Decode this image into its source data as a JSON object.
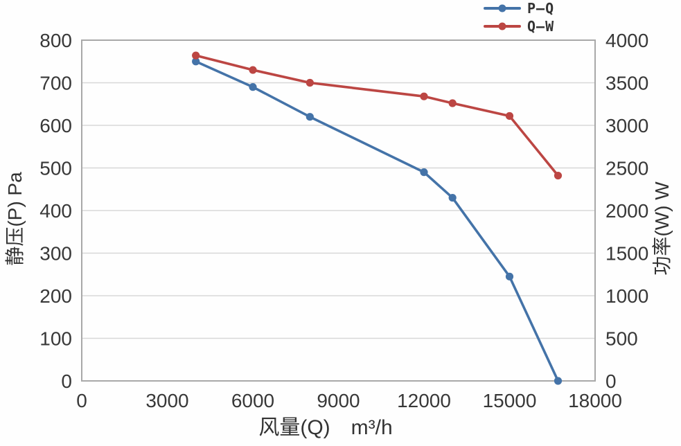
{
  "chart_data": {
    "type": "line",
    "title": "",
    "grid": "horizontal",
    "legend_position": "top-right",
    "x": {
      "label": "风量(Q)",
      "unit": "m³/h",
      "min": 0,
      "max": 18000,
      "ticks": [
        0,
        3000,
        6000,
        9000,
        12000,
        15000,
        18000
      ]
    },
    "y_left": {
      "label": "静压(P) Pa",
      "min": 0,
      "max": 800,
      "ticks": [
        0,
        100,
        200,
        300,
        400,
        500,
        600,
        700,
        800
      ]
    },
    "y_right": {
      "label": "功率(W) W",
      "min": 0,
      "max": 4000,
      "ticks": [
        0,
        500,
        1000,
        1500,
        2000,
        2500,
        3000,
        3500,
        4000
      ]
    },
    "series": [
      {
        "name": "P–Q",
        "axis": "left",
        "color": "#4473a8",
        "marker": "circle",
        "points": [
          [
            4000,
            750
          ],
          [
            6000,
            690
          ],
          [
            8000,
            620
          ],
          [
            12000,
            490
          ],
          [
            13000,
            430
          ],
          [
            15000,
            245
          ],
          [
            16700,
            0
          ]
        ]
      },
      {
        "name": "Q–W",
        "axis": "right",
        "color": "#bc4643",
        "marker": "circle",
        "points": [
          [
            4000,
            3820
          ],
          [
            6000,
            3650
          ],
          [
            8000,
            3500
          ],
          [
            12000,
            3340
          ],
          [
            13000,
            3260
          ],
          [
            15000,
            3110
          ],
          [
            16700,
            2410
          ]
        ]
      }
    ]
  },
  "colors": {
    "gridline": "#d8d8d8",
    "plot_border": "#a8a8a8",
    "tick_text": "#383838"
  }
}
